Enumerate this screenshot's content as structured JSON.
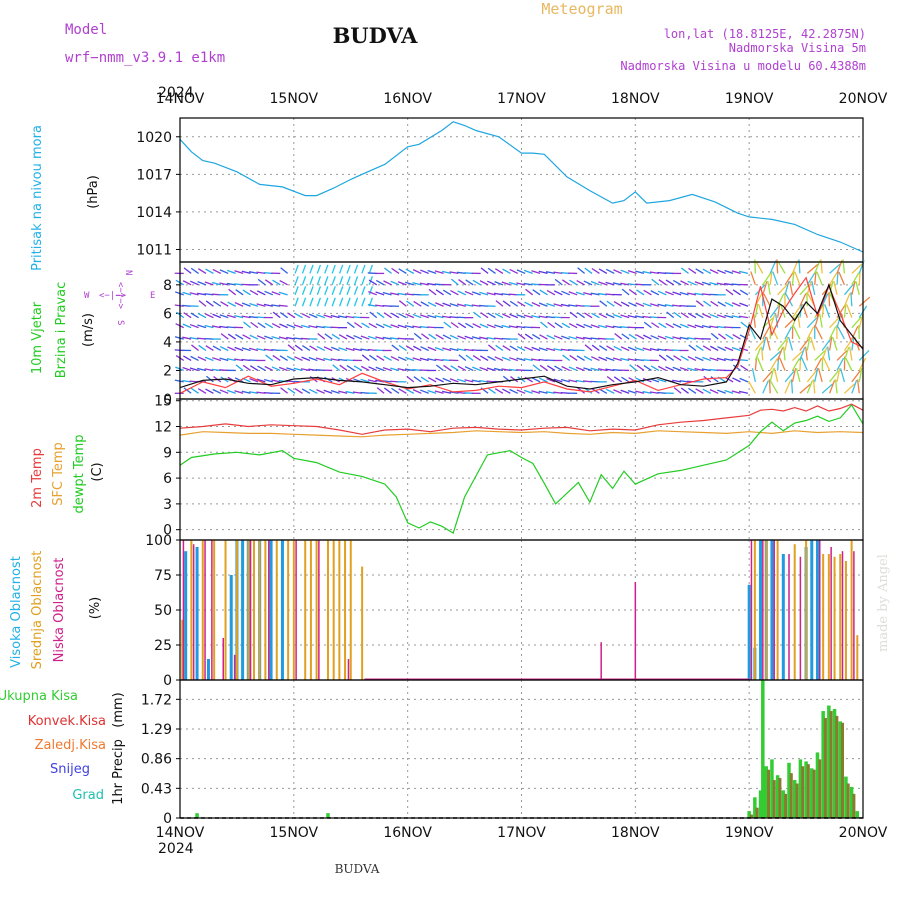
{
  "header": {
    "model_label": "Model",
    "model_name": "wrf−nmm_v3.9.1  e1km",
    "station": "BUDVA",
    "meteogram_label": "Meteogram",
    "coords": "lon,lat (18.8125E, 42.2875N)",
    "elevation": "Nadmorska Visina 5m",
    "model_elevation": "Nadmorska Visina u modelu 60.4388m",
    "year": "2024",
    "bottom_station": "BUDVA",
    "watermark": "made by Angel"
  },
  "colors": {
    "pressure": "#1fa6e0",
    "temp2m": "#e83c3c",
    "sfc_temp": "#e8a030",
    "dewpt": "#22cc22",
    "high_cloud": "#1f9be0",
    "mid_cloud": "#e0a020",
    "low_cloud": "#d0208a",
    "precip_total": "#33cc33",
    "precip_conv": "#e03030",
    "precip_frozen": "#f07830",
    "snow": "#4040e0",
    "graupel": "#20c0b0",
    "label_purple": "#b040d0",
    "label_green": "#22cc22",
    "label_cyan": "#22b0e8"
  },
  "chart_data": [
    {
      "id": "pressure",
      "type": "line",
      "ylabel": "Pritisak na nivou mora",
      "unit": "(hPa)",
      "ylim": [
        1010,
        1021.5
      ],
      "yticks": [
        1011,
        1014,
        1017,
        1020
      ],
      "grid": true,
      "series": [
        {
          "x": [
            0,
            0.1,
            0.2,
            0.3,
            0.5,
            0.7,
            0.9,
            1.1,
            1.2,
            1.35,
            1.5,
            1.6,
            1.8,
            2.0,
            2.1,
            2.3,
            2.4,
            2.5,
            2.6,
            2.8,
            3.0,
            3.1,
            3.2,
            3.4,
            3.6,
            3.8,
            3.9,
            4.0,
            4.1,
            4.3,
            4.5,
            4.7,
            4.9,
            5.0,
            5.2,
            5.4,
            5.6,
            5.8,
            6.0
          ],
          "values": [
            1019.8,
            1018.8,
            1018.1,
            1017.9,
            1017.2,
            1016.2,
            1016.0,
            1015.3,
            1015.3,
            1015.9,
            1016.6,
            1017.0,
            1017.8,
            1019.2,
            1019.4,
            1020.5,
            1021.2,
            1020.9,
            1020.5,
            1020.0,
            1018.7,
            1018.7,
            1018.6,
            1016.8,
            1015.7,
            1014.7,
            1014.9,
            1015.6,
            1014.7,
            1014.9,
            1015.4,
            1014.8,
            1013.9,
            1013.6,
            1013.4,
            1013.0,
            1012.2,
            1011.6,
            1010.8
          ]
        }
      ]
    },
    {
      "id": "wind",
      "type": "line",
      "ylabel": "10m Vjetar",
      "ylabel2": "Brzina i Pravac",
      "unit": "(m/s)",
      "ylim": [
        0,
        9.6
      ],
      "yticks": [
        0,
        2,
        4,
        6,
        8
      ],
      "grid": true,
      "compass": [
        "N",
        "E",
        "W",
        "S"
      ],
      "series": [
        {
          "name": "speed",
          "x": [
            0,
            0.2,
            0.4,
            0.6,
            0.8,
            1.0,
            1.2,
            1.4,
            1.6,
            1.8,
            2.0,
            2.2,
            2.4,
            2.6,
            2.8,
            3.0,
            3.2,
            3.4,
            3.6,
            3.8,
            4.0,
            4.2,
            4.4,
            4.6,
            4.8,
            4.9,
            5.0,
            5.1,
            5.2,
            5.3,
            5.4,
            5.5,
            5.6,
            5.7,
            5.8,
            5.9,
            6.0
          ],
          "values": [
            0.4,
            1.2,
            0.8,
            1.6,
            0.9,
            1.1,
            1.4,
            1.0,
            1.8,
            1.2,
            0.7,
            1.0,
            0.5,
            0.6,
            0.9,
            0.8,
            1.2,
            0.7,
            0.5,
            0.9,
            1.3,
            0.6,
            1.0,
            1.4,
            1.5,
            2.3,
            4.8,
            7.9,
            4.5,
            6.2,
            7.4,
            8.5,
            5.8,
            7.9,
            6.0,
            4.0,
            3.6
          ]
        },
        {
          "name": "gust",
          "x": [
            0,
            0.2,
            0.4,
            0.6,
            0.8,
            1.0,
            1.2,
            1.4,
            1.6,
            1.8,
            2.0,
            2.2,
            2.4,
            2.6,
            2.8,
            3.0,
            3.2,
            3.4,
            3.6,
            3.8,
            4.0,
            4.2,
            4.4,
            4.6,
            4.8,
            4.9,
            5.0,
            5.1,
            5.2,
            5.3,
            5.4,
            5.5,
            5.6,
            5.7,
            5.8,
            5.9,
            6.0
          ],
          "values": [
            0.8,
            1.3,
            1.4,
            1.1,
            1.0,
            1.4,
            1.5,
            1.3,
            1.2,
            1.0,
            0.8,
            0.9,
            1.1,
            1.0,
            1.2,
            1.4,
            1.6,
            0.9,
            0.7,
            1.0,
            1.2,
            1.5,
            1.0,
            0.9,
            1.2,
            2.5,
            5.2,
            4.2,
            7.0,
            6.5,
            5.5,
            6.8,
            6.0,
            8.0,
            5.5,
            4.5,
            3.5
          ]
        }
      ]
    },
    {
      "id": "temperature",
      "type": "line",
      "ylabel": [
        "2m Temp",
        "SFC Temp",
        "dewpt Temp"
      ],
      "unit": "(C)",
      "ylim": [
        -1.2,
        15.2
      ],
      "yticks": [
        0,
        3,
        6,
        9,
        12,
        15
      ],
      "grid": true,
      "series": [
        {
          "name": "2m Temp",
          "x": [
            0,
            0.2,
            0.4,
            0.6,
            0.8,
            1.0,
            1.2,
            1.4,
            1.6,
            1.8,
            2.0,
            2.2,
            2.4,
            2.6,
            2.8,
            3.0,
            3.2,
            3.4,
            3.6,
            3.8,
            4.0,
            4.2,
            4.4,
            4.6,
            4.8,
            5.0,
            5.1,
            5.2,
            5.3,
            5.4,
            5.5,
            5.6,
            5.7,
            5.8,
            5.9,
            6.0
          ],
          "values": [
            11.8,
            12.0,
            12.3,
            12.0,
            12.2,
            12.1,
            12.0,
            11.6,
            11.1,
            11.6,
            11.7,
            11.4,
            11.8,
            11.9,
            11.7,
            11.6,
            11.8,
            11.9,
            11.5,
            11.7,
            11.6,
            12.2,
            12.5,
            12.7,
            13.0,
            13.3,
            13.9,
            14.0,
            13.8,
            14.2,
            13.8,
            14.4,
            13.8,
            14.1,
            14.6,
            13.9
          ]
        },
        {
          "name": "SFC Temp",
          "x": [
            0,
            0.2,
            0.4,
            0.6,
            0.8,
            1.0,
            1.2,
            1.4,
            1.6,
            1.8,
            2.0,
            2.2,
            2.4,
            2.6,
            2.8,
            3.0,
            3.2,
            3.4,
            3.6,
            3.8,
            4.0,
            4.2,
            4.4,
            4.6,
            4.8,
            5.0,
            5.2,
            5.4,
            5.6,
            5.8,
            6.0
          ],
          "values": [
            11.0,
            11.4,
            11.3,
            11.2,
            11.2,
            11.1,
            11.0,
            10.9,
            10.8,
            11.0,
            11.1,
            11.2,
            11.3,
            11.5,
            11.4,
            11.3,
            11.4,
            11.2,
            11.1,
            11.3,
            11.2,
            11.5,
            11.4,
            11.3,
            11.2,
            11.4,
            11.2,
            11.5,
            11.3,
            11.4,
            11.3
          ]
        },
        {
          "name": "dewpt Temp",
          "x": [
            0,
            0.1,
            0.3,
            0.5,
            0.7,
            0.9,
            1.0,
            1.2,
            1.4,
            1.6,
            1.8,
            1.9,
            2.0,
            2.1,
            2.2,
            2.3,
            2.4,
            2.5,
            2.7,
            2.9,
            3.0,
            3.1,
            3.2,
            3.3,
            3.5,
            3.6,
            3.7,
            3.8,
            3.9,
            4.0,
            4.2,
            4.4,
            4.6,
            4.8,
            5.0,
            5.1,
            5.2,
            5.3,
            5.4,
            5.5,
            5.6,
            5.7,
            5.8,
            5.9,
            6.0
          ],
          "values": [
            7.5,
            8.4,
            8.8,
            9.0,
            8.7,
            9.2,
            8.3,
            7.8,
            6.7,
            6.2,
            5.3,
            3.8,
            0.8,
            0.2,
            0.9,
            0.4,
            -0.4,
            3.8,
            8.7,
            9.2,
            8.4,
            7.7,
            5.4,
            3.0,
            5.5,
            3.2,
            6.4,
            4.8,
            6.8,
            5.3,
            6.5,
            6.9,
            7.5,
            8.1,
            9.8,
            11.4,
            12.5,
            11.5,
            12.4,
            12.7,
            13.2,
            12.6,
            13.0,
            14.5,
            12.3
          ]
        }
      ]
    },
    {
      "id": "clouds",
      "type": "bar",
      "ylabel": [
        "Visoka Oblacnost",
        "Srednja Oblacnost",
        "Niska Oblacnost"
      ],
      "unit": "(%)",
      "ylim": [
        0,
        100
      ],
      "yticks": [
        0,
        25,
        50,
        75,
        100
      ],
      "grid": true,
      "series": [
        {
          "name": "Visoka Oblacnost",
          "x": [
            0.05,
            0.15,
            0.25,
            0.45,
            0.5,
            0.55,
            0.6,
            0.7,
            0.8,
            0.9,
            5.0,
            5.05,
            5.1,
            5.15,
            5.2,
            5.3,
            5.5,
            5.55,
            5.6
          ],
          "values": [
            92,
            95,
            15,
            75,
            100,
            100,
            100,
            100,
            100,
            100,
            68,
            23,
            100,
            100,
            100,
            90,
            95,
            100,
            100
          ]
        },
        {
          "name": "Srednja Oblacnost",
          "x": [
            0.02,
            0.1,
            0.2,
            0.3,
            0.4,
            0.5,
            0.6,
            0.65,
            0.7,
            0.75,
            0.85,
            0.95,
            1.0,
            1.1,
            1.15,
            1.2,
            1.3,
            1.35,
            1.4,
            1.45,
            1.5,
            1.6,
            5.05,
            5.15,
            5.25,
            5.4,
            5.5,
            5.65,
            5.7,
            5.75,
            5.8,
            5.85,
            5.9,
            5.95
          ],
          "values": [
            43,
            100,
            100,
            100,
            100,
            100,
            100,
            100,
            100,
            100,
            100,
            100,
            100,
            100,
            100,
            100,
            100,
            100,
            100,
            100,
            100,
            81,
            100,
            100,
            100,
            97,
            100,
            90,
            90,
            88,
            90,
            85,
            100,
            32
          ]
        },
        {
          "name": "Niska Oblacnost",
          "x": [
            0.03,
            0.12,
            0.22,
            0.28,
            0.38,
            0.48,
            0.62,
            0.78,
            1.02,
            1.22,
            1.48,
            3.7,
            4.0,
            5.02,
            5.12,
            5.22,
            5.35,
            5.45,
            5.62,
            5.72,
            5.82,
            5.92
          ],
          "values": [
            100,
            97,
            100,
            100,
            30,
            18,
            100,
            100,
            100,
            100,
            15,
            27,
            70,
            100,
            100,
            100,
            90,
            88,
            100,
            95,
            92,
            92
          ]
        }
      ]
    },
    {
      "id": "precip",
      "type": "bar",
      "ylabel": "1hr Precip",
      "unit": "(mm)",
      "ylim": [
        0,
        2.0
      ],
      "yticks": [
        0,
        0.43,
        0.86,
        1.29,
        1.72
      ],
      "grid": true,
      "legend": [
        "Ukupna Kisa",
        "Konvek.Kisa",
        "Zaledj.Kisa",
        "Snijeg",
        "Grad"
      ],
      "xlabels": [
        "14NOV",
        "15NOV",
        "16NOV",
        "17NOV",
        "18NOV",
        "19NOV",
        "20NOV"
      ],
      "series": [
        {
          "name": "Ukupna Kisa",
          "x": [
            0.15,
            1.3,
            5.0,
            5.05,
            5.1,
            5.12,
            5.15,
            5.2,
            5.25,
            5.3,
            5.35,
            5.4,
            5.45,
            5.5,
            5.55,
            5.6,
            5.65,
            5.7,
            5.75,
            5.8,
            5.85,
            5.9,
            5.95
          ],
          "values": [
            0.07,
            0.07,
            0.1,
            0.3,
            0.4,
            2.0,
            0.75,
            0.85,
            0.62,
            0.4,
            0.8,
            0.55,
            0.85,
            0.82,
            0.72,
            0.95,
            1.55,
            1.63,
            1.58,
            1.4,
            0.6,
            0.45,
            0.1
          ]
        },
        {
          "name": "Konvek.Kisa",
          "x": [
            5.02,
            5.07,
            5.17,
            5.22,
            5.27,
            5.32,
            5.37,
            5.42,
            5.47,
            5.52,
            5.57,
            5.62,
            5.67,
            5.72,
            5.77,
            5.82,
            5.87,
            5.92
          ],
          "values": [
            0.05,
            0.15,
            0.7,
            0.55,
            0.58,
            0.35,
            0.65,
            0.5,
            0.75,
            0.78,
            0.7,
            0.85,
            1.45,
            1.55,
            1.48,
            1.38,
            0.5,
            0.35
          ]
        }
      ]
    }
  ]
}
